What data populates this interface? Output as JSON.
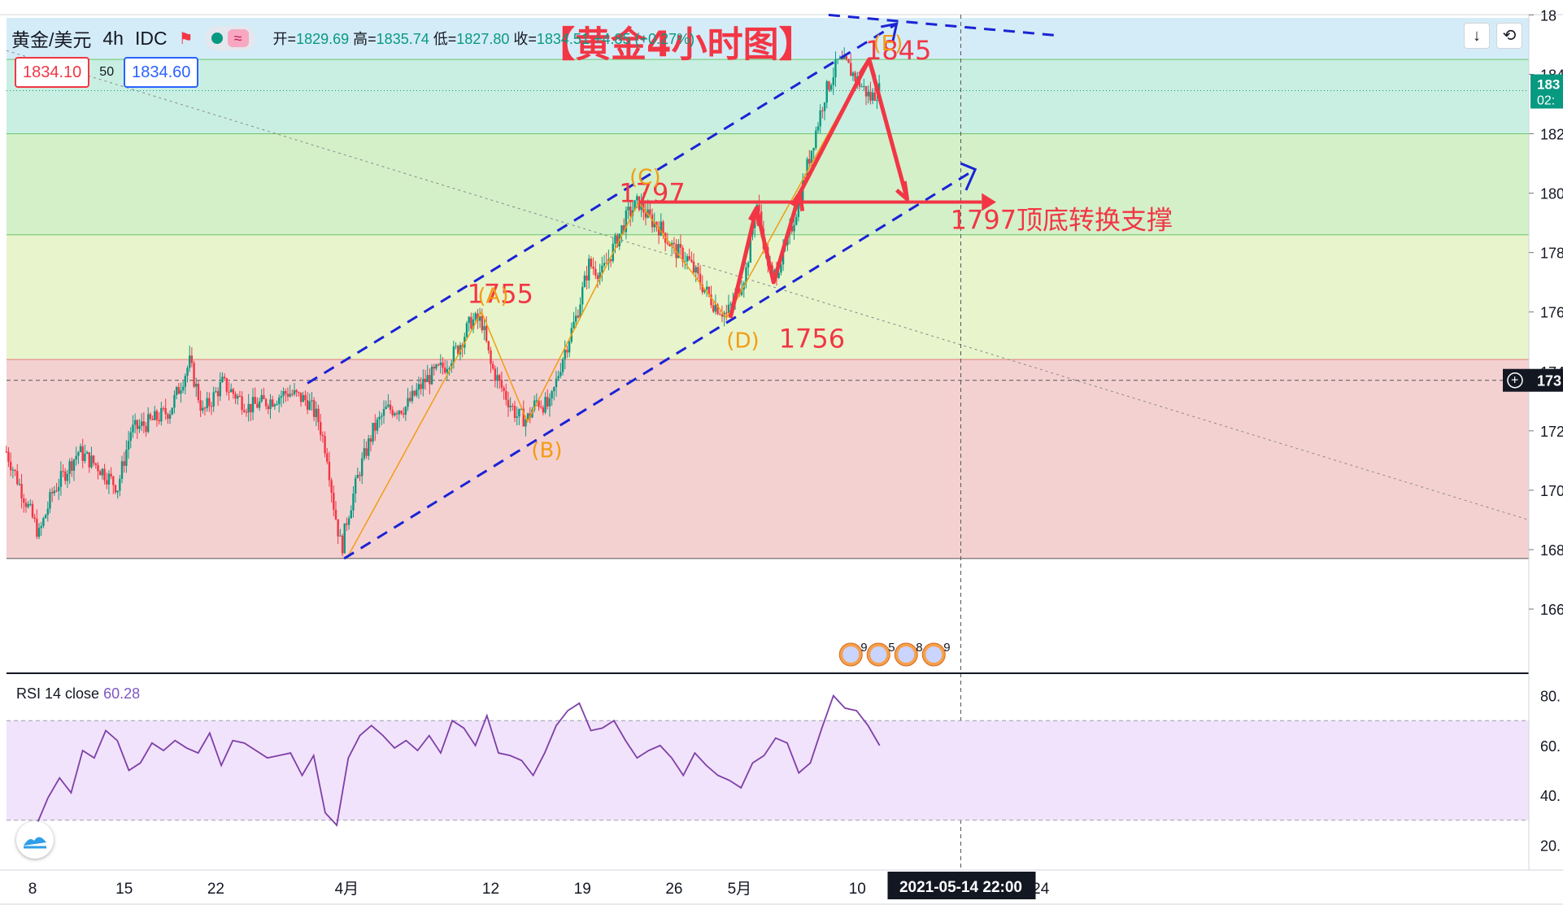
{
  "header": {
    "symbol": "黄金/美元",
    "interval": "4h",
    "exchange": "IDC",
    "ohlc": {
      "open_label": "开=",
      "open": "1829.69",
      "high_label": "高=",
      "high": "1835.74",
      "low_label": "低=",
      "low": "1827.80",
      "close_label": "收=",
      "close": "1834.51",
      "change": "+4.85 (+0.27%)"
    },
    "bid": "1834.10",
    "spread": "50",
    "ask": "1834.60"
  },
  "buttons": {
    "scroll_down": "↓",
    "reset": "⟲"
  },
  "rsi": {
    "label": "RSI 14 close",
    "value": "60.28"
  },
  "colors": {
    "red": "#f23645",
    "orange": "#f39c12",
    "blue": "#1a23d6",
    "up": "#089981",
    "down": "#f23645",
    "rsi": "#7e3fa7",
    "zone_blue": "#d4ecf7",
    "zone_teal": "#c9efe2",
    "zone_green": "#d3f0c9",
    "zone_yellow": "#e8f4cc",
    "zone_red": "#f4d1d1"
  },
  "chart_data": {
    "type": "candlestick",
    "title": "【黄金4小时图】",
    "price_range": [
      1657,
      1859
    ],
    "price_axis_labels": [
      "18",
      "184",
      "182",
      "180",
      "178",
      "176",
      "174",
      "172",
      "170",
      "168",
      "166"
    ],
    "price_axis_values": [
      1860,
      1840,
      1820,
      1800,
      1780,
      1760,
      1740,
      1720,
      1700,
      1680,
      1660
    ],
    "current_price_tag": {
      "price": 1834.51,
      "text": "183",
      "countdown": "02:"
    },
    "crosshair_price_tag": {
      "price": 1737,
      "text": "173"
    },
    "time_labels": [
      {
        "label": "8",
        "day": 8
      },
      {
        "label": "15",
        "day": 15
      },
      {
        "label": "22",
        "day": 22
      },
      {
        "label": "4月",
        "day": 32
      },
      {
        "label": "12",
        "day": 43
      },
      {
        "label": "19",
        "day": 50
      },
      {
        "label": "26",
        "day": 57
      },
      {
        "label": "5月",
        "day": 62
      },
      {
        "label": "10",
        "day": 71
      },
      {
        "label": "24",
        "day": 85
      }
    ],
    "crosshair_time": {
      "day": 78.9,
      "label": "2021-05-14   22:00"
    },
    "path_points": [
      [
        6.0,
        1713
      ],
      [
        8.5,
        1685
      ],
      [
        9.5,
        1699
      ],
      [
        11.5,
        1713
      ],
      [
        13.0,
        1708
      ],
      [
        14.5,
        1701
      ],
      [
        15.5,
        1720
      ],
      [
        17.0,
        1723
      ],
      [
        18.5,
        1727
      ],
      [
        20.0,
        1743
      ],
      [
        21.0,
        1726
      ],
      [
        22.5,
        1736
      ],
      [
        24.5,
        1728
      ],
      [
        26.0,
        1730
      ],
      [
        27.5,
        1733
      ],
      [
        29.0,
        1730
      ],
      [
        29.8,
        1724
      ],
      [
        30.5,
        1712
      ],
      [
        31.0,
        1695
      ],
      [
        31.6,
        1680
      ],
      [
        32.0,
        1690
      ],
      [
        33.0,
        1707
      ],
      [
        34.0,
        1720
      ],
      [
        35.0,
        1727
      ],
      [
        36.5,
        1728
      ],
      [
        38.0,
        1737
      ],
      [
        39.5,
        1742
      ],
      [
        40.5,
        1748
      ],
      [
        41.5,
        1757
      ],
      [
        42.3,
        1757
      ],
      [
        43.0,
        1742
      ],
      [
        44.0,
        1733
      ],
      [
        45.0,
        1725
      ],
      [
        45.8,
        1724
      ],
      [
        46.5,
        1730
      ],
      [
        47.5,
        1728
      ],
      [
        48.5,
        1745
      ],
      [
        49.5,
        1758
      ],
      [
        50.5,
        1776
      ],
      [
        51.5,
        1773
      ],
      [
        52.5,
        1783
      ],
      [
        53.5,
        1793
      ],
      [
        54.3,
        1797
      ],
      [
        55.0,
        1792
      ],
      [
        56.0,
        1788
      ],
      [
        57.0,
        1781
      ],
      [
        58.0,
        1778
      ],
      [
        59.0,
        1770
      ],
      [
        60.0,
        1763
      ],
      [
        61.0,
        1759
      ],
      [
        61.8,
        1766
      ],
      [
        62.5,
        1774
      ],
      [
        63.3,
        1797
      ],
      [
        64.0,
        1780
      ],
      [
        64.5,
        1771
      ],
      [
        65.5,
        1781
      ],
      [
        66.5,
        1797
      ],
      [
        67.5,
        1815
      ],
      [
        68.5,
        1833
      ],
      [
        69.5,
        1844
      ],
      [
        70.2,
        1843
      ],
      [
        71.0,
        1838
      ],
      [
        72.0,
        1832
      ],
      [
        72.7,
        1835
      ]
    ],
    "rsi": {
      "range": [
        10,
        90
      ],
      "levels": [
        70,
        30
      ],
      "axis": [
        {
          "label": "80.",
          "v": 80
        },
        {
          "label": "60.",
          "v": 60
        },
        {
          "label": "40.",
          "v": 40
        },
        {
          "label": "20.",
          "v": 20
        }
      ],
      "values": [
        28,
        39,
        47,
        41,
        58,
        55,
        66,
        62,
        50,
        53,
        61,
        58,
        62,
        59,
        57,
        65,
        52,
        62,
        61,
        58,
        55,
        56,
        57,
        48,
        56,
        33,
        28,
        55,
        64,
        68,
        64,
        59,
        62,
        58,
        64,
        57,
        70,
        67,
        60,
        72,
        57,
        56,
        54,
        48,
        57,
        68,
        74,
        77,
        66,
        67,
        70,
        62,
        55,
        58,
        60,
        55,
        48,
        57,
        52,
        48,
        46,
        43,
        53,
        56,
        63,
        61,
        49,
        53,
        67,
        80,
        75,
        74,
        68,
        60
      ]
    },
    "annotations": [
      {
        "text": "1845",
        "color": "red",
        "day": 71.6,
        "price": 1845
      },
      {
        "text": "(E)",
        "color": "orange",
        "day": 72.2,
        "price": 1848
      },
      {
        "text": "1797",
        "color": "red",
        "day": 52.8,
        "price": 1797
      },
      {
        "text": "(C)",
        "color": "orange",
        "day": 53.6,
        "price": 1803
      },
      {
        "text": "1755",
        "color": "red",
        "day": 41.2,
        "price": 1763
      },
      {
        "text": "(A)",
        "color": "orange",
        "day": 42.0,
        "price": 1763
      },
      {
        "text": "(B)",
        "color": "orange",
        "day": 46.1,
        "price": 1711
      },
      {
        "text": "(D)",
        "color": "orange",
        "day": 61.0,
        "price": 1748
      },
      {
        "text": "1756",
        "color": "red",
        "day": 65.0,
        "price": 1748
      },
      {
        "text": "1797顶底转换支撑",
        "color": "red",
        "day": 78.1,
        "price": 1788
      }
    ],
    "event_icons": [
      "9",
      "5",
      "8",
      "9"
    ]
  }
}
